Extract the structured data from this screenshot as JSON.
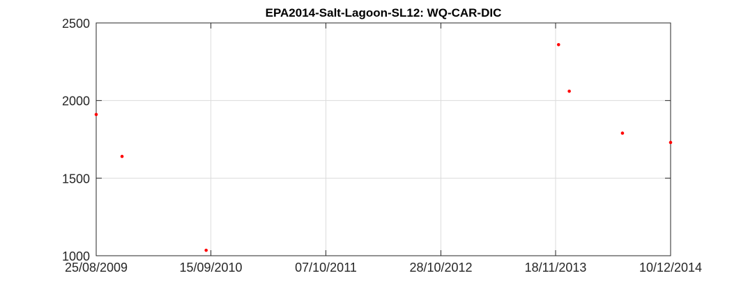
{
  "chart_data": {
    "type": "scatter",
    "title": "EPA2014-Salt-Lagoon-SL12: WQ-CAR-DIC",
    "xlabel": "",
    "ylabel": "",
    "x_type": "date",
    "xlim": [
      "2009-08-25",
      "2014-12-10"
    ],
    "ylim": [
      1000,
      2500
    ],
    "x_ticks": [
      "2009-08-25",
      "2010-09-15",
      "2011-10-07",
      "2012-10-28",
      "2013-11-18",
      "2014-12-10"
    ],
    "x_tick_labels": [
      "25/08/2009",
      "15/09/2010",
      "07/10/2011",
      "28/10/2012",
      "18/11/2013",
      "10/12/2014"
    ],
    "y_ticks": [
      1000,
      1500,
      2000,
      2500
    ],
    "y_tick_labels": [
      "1000",
      "1500",
      "2000",
      "2500"
    ],
    "grid": true,
    "marker_color": "#ff0000",
    "series": [
      {
        "points": [
          {
            "x": "2009-08-25",
            "y": 1910
          },
          {
            "x": "2009-11-20",
            "y": 1640
          },
          {
            "x": "2010-08-30",
            "y": 1035
          },
          {
            "x": "2013-11-28",
            "y": 2360
          },
          {
            "x": "2014-01-03",
            "y": 2060
          },
          {
            "x": "2014-07-01",
            "y": 1790
          },
          {
            "x": "2014-12-10",
            "y": 1730
          }
        ]
      }
    ]
  }
}
